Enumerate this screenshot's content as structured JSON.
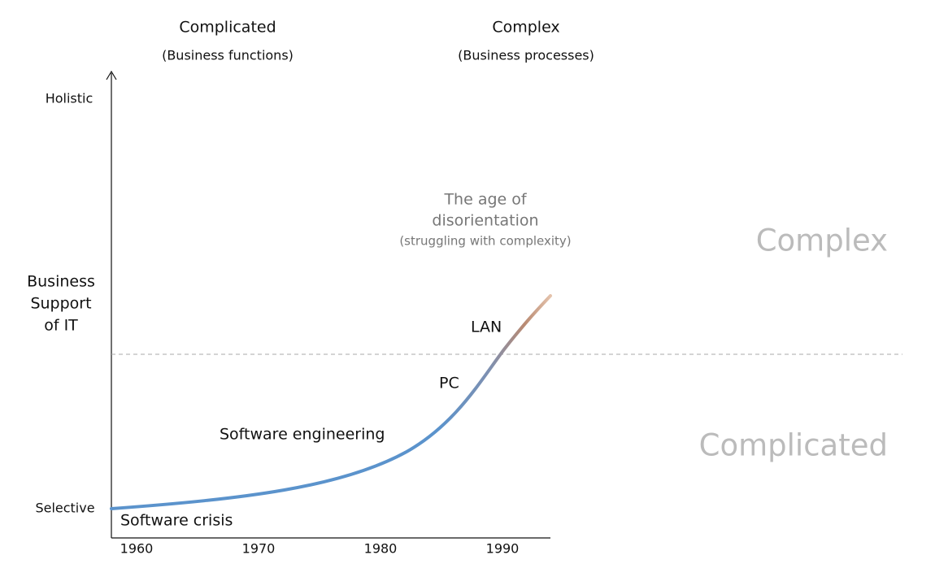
{
  "headers": [
    {
      "title": "Complicated",
      "subtitle": "(Business functions)"
    },
    {
      "title": "Complex",
      "subtitle": "(Business processes)"
    }
  ],
  "y_axis": {
    "title_lines": [
      "Business",
      "Support",
      "of IT"
    ],
    "top": "Holistic",
    "bottom": "Selective"
  },
  "x_axis": {
    "labels": [
      "1960",
      "1970",
      "1980",
      "1990"
    ]
  },
  "milestones": [
    "Software crisis",
    "Software engineering",
    "PC",
    "LAN"
  ],
  "annotation": {
    "title_lines": [
      "The age of",
      "disorientation"
    ],
    "note": "(struggling with complexity)"
  },
  "zones": [
    "Complex",
    "Complicated"
  ]
}
